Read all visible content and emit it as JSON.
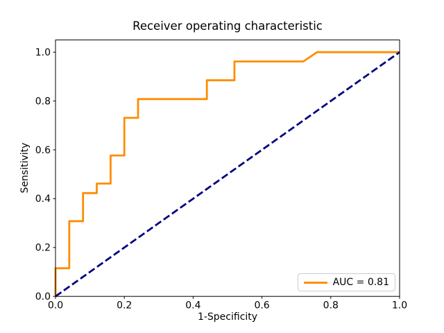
{
  "chart_data": {
    "type": "line",
    "title": "Receiver operating characteristic",
    "xlabel": "1-Specificity",
    "ylabel": "Sensitivity",
    "xlim": [
      0.0,
      1.0
    ],
    "ylim": [
      0.0,
      1.05
    ],
    "x_ticks": [
      0.0,
      0.2,
      0.4,
      0.6,
      0.8,
      1.0
    ],
    "x_tick_labels": [
      "0.0",
      "0.2",
      "0.4",
      "0.6",
      "0.8",
      "1.0"
    ],
    "y_ticks": [
      0.0,
      0.2,
      0.4,
      0.6,
      0.8,
      1.0
    ],
    "y_tick_labels": [
      "0.0",
      "0.2",
      "0.4",
      "0.6",
      "0.8",
      "1.0"
    ],
    "grid": false,
    "auc": 0.81,
    "legend": {
      "position": "lower right",
      "entries": [
        {
          "label": "AUC = 0.81",
          "color": "#ff8c00",
          "style": "solid"
        }
      ]
    },
    "series": [
      {
        "name": "roc-curve",
        "color": "#ff8c00",
        "style": "solid",
        "linewidth": 2.8,
        "points": [
          [
            0.0,
            0.0
          ],
          [
            0.0,
            0.115
          ],
          [
            0.04,
            0.115
          ],
          [
            0.04,
            0.308
          ],
          [
            0.08,
            0.308
          ],
          [
            0.08,
            0.423
          ],
          [
            0.12,
            0.423
          ],
          [
            0.12,
            0.462
          ],
          [
            0.16,
            0.462
          ],
          [
            0.16,
            0.577
          ],
          [
            0.2,
            0.577
          ],
          [
            0.2,
            0.731
          ],
          [
            0.24,
            0.731
          ],
          [
            0.24,
            0.808
          ],
          [
            0.44,
            0.808
          ],
          [
            0.44,
            0.885
          ],
          [
            0.52,
            0.885
          ],
          [
            0.52,
            0.962
          ],
          [
            0.72,
            0.962
          ],
          [
            0.76,
            1.0
          ],
          [
            1.0,
            1.0
          ]
        ]
      },
      {
        "name": "chance-diagonal",
        "color": "#000080",
        "style": "dashed",
        "linewidth": 2.8,
        "points": [
          [
            0.0,
            0.0
          ],
          [
            1.0,
            1.0
          ]
        ]
      }
    ]
  }
}
